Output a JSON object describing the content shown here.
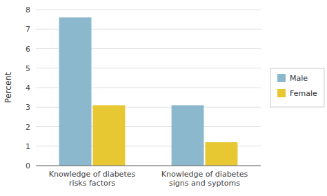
{
  "chart_data": {
    "type": "bar",
    "categories": [
      "Knowledge of diabetes\nrisks factors",
      "Knowledge of diabetes\nsigns and syptoms"
    ],
    "series": [
      {
        "name": "Male",
        "color": "#8BB8CC",
        "values": [
          7.6,
          3.1
        ]
      },
      {
        "name": "Female",
        "color": "#E8C832",
        "values": [
          3.1,
          1.2
        ]
      }
    ],
    "ylabel": "Percent",
    "ylim": [
      0,
      8
    ],
    "yticks": [
      0,
      1,
      2,
      3,
      4,
      5,
      6,
      7,
      8
    ],
    "grid": true,
    "legend": "right"
  }
}
